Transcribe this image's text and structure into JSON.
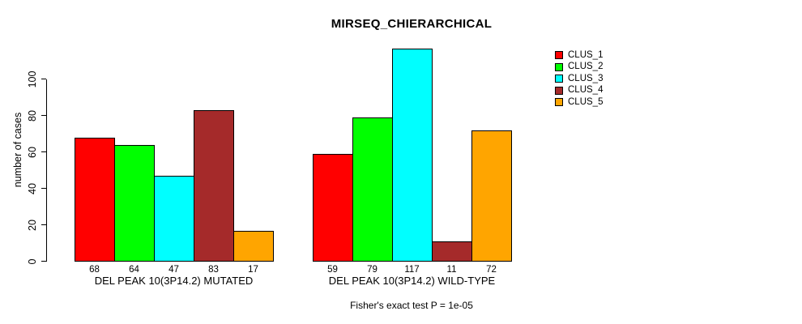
{
  "chart_data": {
    "type": "bar",
    "title": "MIRSEQ_CHIERARCHICAL",
    "ylabel": "number of cases",
    "xlabel": "",
    "ylim": [
      0,
      117
    ],
    "yticks": [
      0,
      20,
      40,
      60,
      80,
      100
    ],
    "grid": false,
    "background": "#FFFFFF",
    "text_color": "#000000",
    "categories": [
      "DEL PEAK 10(3P14.2) MUTATED",
      "DEL PEAK 10(3P14.2) WILD-TYPE"
    ],
    "series": [
      {
        "name": "CLUS_1",
        "color": "#FF0000",
        "values": [
          68,
          59
        ]
      },
      {
        "name": "CLUS_2",
        "color": "#00FF00",
        "values": [
          64,
          79
        ]
      },
      {
        "name": "CLUS_3",
        "color": "#00FFFF",
        "values": [
          47,
          117
        ]
      },
      {
        "name": "CLUS_4",
        "color": "#A52A2A",
        "values": [
          83,
          11
        ]
      },
      {
        "name": "CLUS_5",
        "color": "#FFA500",
        "values": [
          17,
          72
        ]
      }
    ],
    "show_bar_value_labels": true,
    "bar_value_labels": {
      "group_1": [
        68,
        64,
        47,
        83,
        17
      ],
      "group_2": [
        59,
        79,
        117,
        11,
        72
      ]
    },
    "legend_position": "top-right",
    "legend_entries": [
      "CLUS_1",
      "CLUS_2",
      "CLUS_3",
      "CLUS_4",
      "CLUS_5"
    ],
    "annotation": "Fisher's exact test P = 1e-05"
  }
}
